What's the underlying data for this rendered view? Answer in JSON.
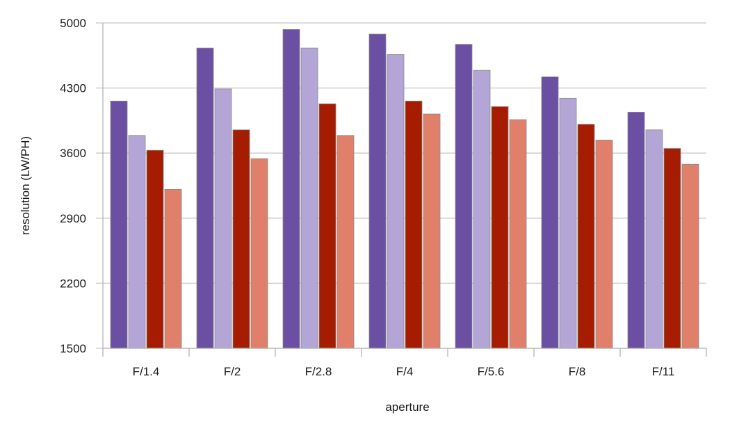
{
  "chart_data": {
    "type": "bar",
    "xlabel": "aperture",
    "ylabel": "resolution (LW/PH)",
    "ylim": [
      1500,
      5000
    ],
    "yticks": [
      1500,
      2200,
      2900,
      3600,
      4300,
      5000
    ],
    "grid": true,
    "legend": "none",
    "categories": [
      "F/1.4",
      "F/2",
      "F/2.8",
      "F/4",
      "F/5.6",
      "F/8",
      "F/11"
    ],
    "series": [
      {
        "color": "#6a4fa3",
        "values": [
          4160,
          4730,
          4930,
          4880,
          4770,
          4420,
          4040
        ]
      },
      {
        "color": "#b3a6d6",
        "values": [
          3790,
          4290,
          4730,
          4660,
          4490,
          4190,
          3850
        ]
      },
      {
        "color": "#a51c00",
        "values": [
          3630,
          3850,
          4130,
          4160,
          4100,
          3910,
          3650
        ]
      },
      {
        "color": "#e0806b",
        "values": [
          3210,
          3540,
          3790,
          4020,
          3960,
          3740,
          3480
        ]
      }
    ]
  }
}
